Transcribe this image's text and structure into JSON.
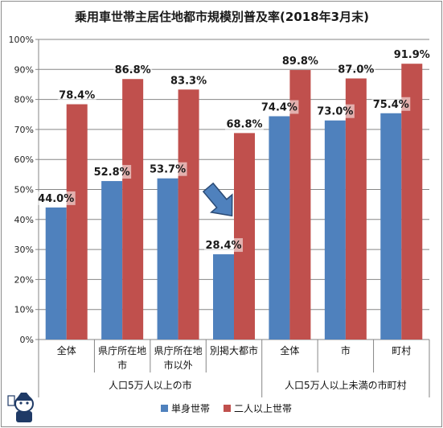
{
  "chart_data": {
    "type": "bar",
    "title": "乗用車世帯主居住地都市規模別普及率(2018年3月末)",
    "categories": [
      [
        "全体"
      ],
      [
        "県庁所在地",
        "市"
      ],
      [
        "県庁所在地",
        "市以外"
      ],
      [
        "別掲大都市"
      ],
      [
        "全体"
      ],
      [
        "市"
      ],
      [
        "町村"
      ]
    ],
    "groups": [
      {
        "label": "人口5万人以上の市",
        "from": 0,
        "to": 3
      },
      {
        "label": "人口5万人以上未満の市町村",
        "from": 4,
        "to": 6
      }
    ],
    "series": [
      {
        "name": "単身世帯",
        "values": [
          44.0,
          52.8,
          53.7,
          28.4,
          74.4,
          73.0,
          75.4
        ],
        "color": "#4f81bd"
      },
      {
        "name": "二人以上世帯",
        "values": [
          78.4,
          86.8,
          83.3,
          68.8,
          89.8,
          87.0,
          91.9
        ],
        "color": "#c0504d"
      }
    ],
    "data_labels": [
      [
        "44.0%",
        "52.8%",
        "53.7%",
        "28.4%",
        "74.4%",
        "73.0%",
        "75.4%"
      ],
      [
        "78.4%",
        "86.8%",
        "83.3%",
        "68.8%",
        "89.8%",
        "87.0%",
        "91.9%"
      ]
    ],
    "ylim": [
      0,
      100
    ],
    "yticks": [
      "0%",
      "10%",
      "20%",
      "30%",
      "40%",
      "50%",
      "60%",
      "70%",
      "80%",
      "90%",
      "100%"
    ],
    "grid": true,
    "legend_position": "bottom",
    "annotation": {
      "type": "arrow",
      "target_category": 3,
      "color": "#4f81bd"
    }
  }
}
